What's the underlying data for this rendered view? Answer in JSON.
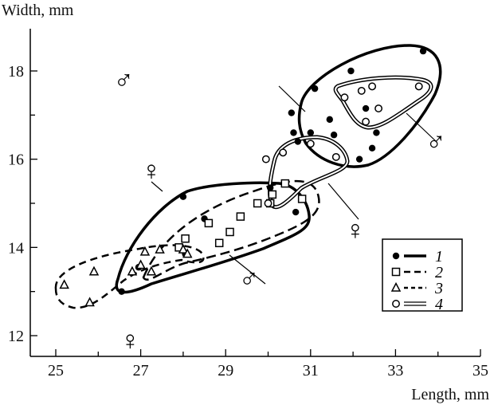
{
  "chart_data": {
    "type": "scatter",
    "xlabel": "Length, mm",
    "ylabel": "Width, mm",
    "xlim": [
      24.5,
      35
    ],
    "ylim": [
      11.5,
      19
    ],
    "xticks": [
      25,
      27,
      29,
      31,
      33,
      35
    ],
    "yticks": [
      12,
      14,
      16,
      18
    ],
    "legend_position": "lower-right",
    "series": [
      {
        "name": "1",
        "marker": "filled-circle",
        "line": "thick-solid",
        "points": [
          [
            28.0,
            15.15
          ],
          [
            28.5,
            14.65
          ],
          [
            28.05,
            13.85
          ],
          [
            26.95,
            13.55
          ],
          [
            26.55,
            13.0
          ],
          [
            30.05,
            15.35
          ],
          [
            30.65,
            14.8
          ],
          [
            30.55,
            17.05
          ],
          [
            31.1,
            17.6
          ],
          [
            31.95,
            18.0
          ],
          [
            33.65,
            18.45
          ],
          [
            31.0,
            16.6
          ],
          [
            30.7,
            16.4
          ],
          [
            31.45,
            16.9
          ],
          [
            31.55,
            16.55
          ],
          [
            32.3,
            17.15
          ],
          [
            32.55,
            16.6
          ],
          [
            32.45,
            16.25
          ],
          [
            32.15,
            16.0
          ],
          [
            30.6,
            16.6
          ]
        ]
      },
      {
        "name": "2",
        "marker": "open-square",
        "line": "dashed",
        "points": [
          [
            28.05,
            14.2
          ],
          [
            27.9,
            14.0
          ],
          [
            28.6,
            14.55
          ],
          [
            29.1,
            14.35
          ],
          [
            29.35,
            14.7
          ],
          [
            28.85,
            14.1
          ],
          [
            29.75,
            15.0
          ],
          [
            30.1,
            15.2
          ],
          [
            30.4,
            15.45
          ],
          [
            30.8,
            15.1
          ],
          [
            30.05,
            15.0
          ]
        ]
      },
      {
        "name": "3",
        "marker": "open-triangle",
        "line": "short-dashed",
        "points": [
          [
            25.2,
            13.15
          ],
          [
            25.8,
            12.75
          ],
          [
            25.9,
            13.45
          ],
          [
            26.8,
            13.45
          ],
          [
            27.1,
            13.9
          ],
          [
            27.45,
            13.95
          ],
          [
            27.25,
            13.45
          ],
          [
            27.0,
            13.6
          ],
          [
            28.0,
            13.95
          ],
          [
            28.1,
            13.85
          ]
        ]
      },
      {
        "name": "4",
        "marker": "open-circle",
        "line": "double",
        "points": [
          [
            30.0,
            15.0
          ],
          [
            29.95,
            16.0
          ],
          [
            30.35,
            16.15
          ],
          [
            31.0,
            16.35
          ],
          [
            31.6,
            16.05
          ],
          [
            31.8,
            17.4
          ],
          [
            32.2,
            17.55
          ],
          [
            32.45,
            17.65
          ],
          [
            33.55,
            17.65
          ],
          [
            32.6,
            17.15
          ],
          [
            32.3,
            16.85
          ]
        ]
      }
    ],
    "annotations": [
      {
        "text": "♂",
        "x": 26.6,
        "y": 17.8
      },
      {
        "text": "♂",
        "x": 33.95,
        "y": 16.4
      },
      {
        "text": "♂",
        "x": 29.55,
        "y": 13.3
      },
      {
        "text": "♀",
        "x": 27.25,
        "y": 15.75
      },
      {
        "text": "♀",
        "x": 32.05,
        "y": 14.4
      },
      {
        "text": "♀",
        "x": 26.75,
        "y": 11.9
      }
    ],
    "legend": [
      "1",
      "2",
      "3",
      "4"
    ]
  }
}
